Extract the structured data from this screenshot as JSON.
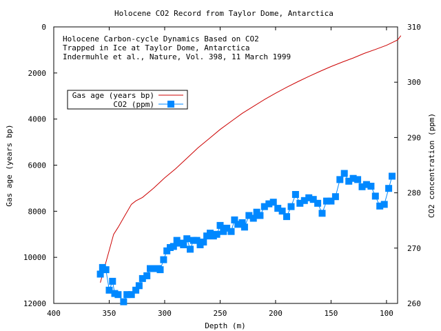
{
  "chart_data": {
    "type": "line",
    "title": "Holocene CO2 Record from Taylor Dome, Antarctica",
    "annotation_lines": [
      "Holocene Carbon-cycle Dynamics Based on CO2",
      "Trapped in Ice at Taylor Dome, Antarctica",
      "Indermuhle et al., Nature, Vol. 398, 11 March 1999"
    ],
    "xlabel": "Depth (m)",
    "ylabel": "Gas age (years bp)",
    "y2label": "CO2 concentration (ppm)",
    "xlim": [
      400,
      90
    ],
    "ylim": [
      12000,
      0
    ],
    "y2lim": [
      260,
      310
    ],
    "x_ticks": [
      "400",
      "350",
      "300",
      "250",
      "200",
      "150",
      "100"
    ],
    "y_ticks": [
      "0",
      "2000",
      "4000",
      "6000",
      "8000",
      "10000",
      "12000"
    ],
    "y2_ticks": [
      "260",
      "270",
      "280",
      "290",
      "300",
      "310"
    ],
    "legend_position": "top-left",
    "grid": false,
    "series": [
      {
        "name": "Gas age (years bp)",
        "axis": "y",
        "color": "#cc0000",
        "style": "line",
        "points": [
          [
            358,
            11100
          ],
          [
            354,
            10400
          ],
          [
            350,
            9700
          ],
          [
            346,
            9000
          ],
          [
            342,
            8700
          ],
          [
            336,
            8200
          ],
          [
            330,
            7700
          ],
          [
            326,
            7550
          ],
          [
            320,
            7400
          ],
          [
            310,
            7000
          ],
          [
            300,
            6550
          ],
          [
            290,
            6150
          ],
          [
            280,
            5700
          ],
          [
            270,
            5250
          ],
          [
            260,
            4850
          ],
          [
            250,
            4450
          ],
          [
            240,
            4100
          ],
          [
            230,
            3750
          ],
          [
            220,
            3450
          ],
          [
            210,
            3150
          ],
          [
            200,
            2880
          ],
          [
            190,
            2620
          ],
          [
            180,
            2380
          ],
          [
            170,
            2150
          ],
          [
            160,
            1930
          ],
          [
            150,
            1720
          ],
          [
            140,
            1530
          ],
          [
            130,
            1350
          ],
          [
            120,
            1150
          ],
          [
            110,
            980
          ],
          [
            100,
            800
          ],
          [
            90,
            570
          ],
          [
            87,
            380
          ]
        ]
      },
      {
        "name": "CO2 (ppm)",
        "axis": "y2",
        "color": "#0088ff",
        "style": "linespoints",
        "points": [
          [
            358,
            265.3
          ],
          [
            356,
            266.5
          ],
          [
            353,
            266.1
          ],
          [
            350,
            262.4
          ],
          [
            347,
            264.0
          ],
          [
            345,
            261.8
          ],
          [
            342,
            261.6
          ],
          [
            337,
            260.3
          ],
          [
            334,
            261.6
          ],
          [
            330,
            261.6
          ],
          [
            326,
            262.4
          ],
          [
            323,
            263.2
          ],
          [
            320,
            264.5
          ],
          [
            316,
            265.0
          ],
          [
            313,
            266.3
          ],
          [
            309,
            266.3
          ],
          [
            306,
            266.3
          ],
          [
            304,
            266.1
          ],
          [
            301,
            267.9
          ],
          [
            298,
            269.5
          ],
          [
            295,
            270.1
          ],
          [
            292,
            270.3
          ],
          [
            289,
            271.4
          ],
          [
            286,
            270.9
          ],
          [
            283,
            270.6
          ],
          [
            280,
            271.7
          ],
          [
            277,
            269.8
          ],
          [
            274,
            271.4
          ],
          [
            271,
            271.4
          ],
          [
            268,
            270.6
          ],
          [
            265,
            271.1
          ],
          [
            262,
            272.2
          ],
          [
            259,
            272.7
          ],
          [
            256,
            272.2
          ],
          [
            253,
            272.5
          ],
          [
            250,
            274.1
          ],
          [
            247,
            273.0
          ],
          [
            244,
            273.6
          ],
          [
            240,
            273.0
          ],
          [
            237,
            275.1
          ],
          [
            234,
            274.3
          ],
          [
            230,
            274.6
          ],
          [
            228,
            273.8
          ],
          [
            224,
            275.9
          ],
          [
            220,
            275.4
          ],
          [
            217,
            276.5
          ],
          [
            214,
            275.9
          ],
          [
            210,
            277.5
          ],
          [
            206,
            278.0
          ],
          [
            202,
            278.3
          ],
          [
            198,
            277.2
          ],
          [
            194,
            276.7
          ],
          [
            190,
            275.7
          ],
          [
            186,
            277.5
          ],
          [
            182,
            279.7
          ],
          [
            178,
            278.1
          ],
          [
            174,
            278.6
          ],
          [
            170,
            279.1
          ],
          [
            166,
            278.8
          ],
          [
            162,
            278.1
          ],
          [
            158,
            276.3
          ],
          [
            154,
            278.5
          ],
          [
            150,
            278.5
          ],
          [
            146,
            279.3
          ],
          [
            142,
            282.4
          ],
          [
            138,
            283.5
          ],
          [
            134,
            282.1
          ],
          [
            130,
            282.6
          ],
          [
            126,
            282.4
          ],
          [
            122,
            281.1
          ],
          [
            118,
            281.5
          ],
          [
            114,
            281.2
          ],
          [
            110,
            279.4
          ],
          [
            106,
            277.6
          ],
          [
            102,
            277.9
          ],
          [
            98,
            280.8
          ],
          [
            95,
            283.0
          ]
        ]
      }
    ]
  }
}
